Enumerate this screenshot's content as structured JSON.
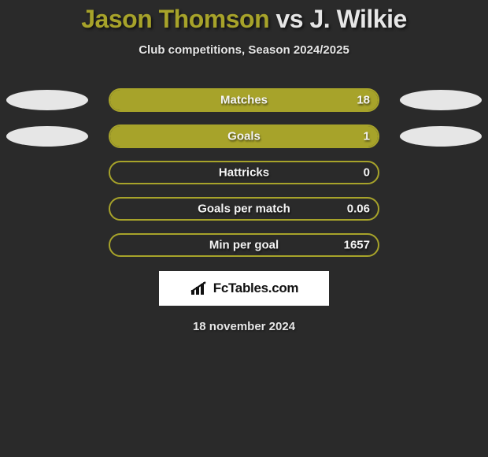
{
  "header": {
    "player1": "Jason Thomson",
    "versus": "vs",
    "player2": "J. Wilkie",
    "subtitle": "Club competitions, Season 2024/2025",
    "p1_color": "#a7a32a",
    "mid_color": "#e6e6e6",
    "p2_color": "#e6e6e6"
  },
  "stats": {
    "bar_border_color": "#a7a32a",
    "bar_fill_color": "#a7a32a",
    "ellipse_left_color": "#e6e6e6",
    "ellipse_right_color": "#e6e6e6",
    "rows": [
      {
        "label": "Matches",
        "rvalue": "18",
        "fill_pct": 100,
        "left_ellipse": true,
        "right_ellipse": true
      },
      {
        "label": "Goals",
        "rvalue": "1",
        "fill_pct": 100,
        "left_ellipse": true,
        "right_ellipse": true
      },
      {
        "label": "Hattricks",
        "rvalue": "0",
        "fill_pct": 0,
        "left_ellipse": false,
        "right_ellipse": false
      },
      {
        "label": "Goals per match",
        "rvalue": "0.06",
        "fill_pct": 0,
        "left_ellipse": false,
        "right_ellipse": false
      },
      {
        "label": "Min per goal",
        "rvalue": "1657",
        "fill_pct": 0,
        "left_ellipse": false,
        "right_ellipse": false
      }
    ]
  },
  "footer": {
    "logo_text": "FcTables.com",
    "date": "18 november 2024",
    "logo_bg": "#ffffff",
    "logo_text_color": "#111111"
  },
  "page_bg": "#2a2a2a"
}
